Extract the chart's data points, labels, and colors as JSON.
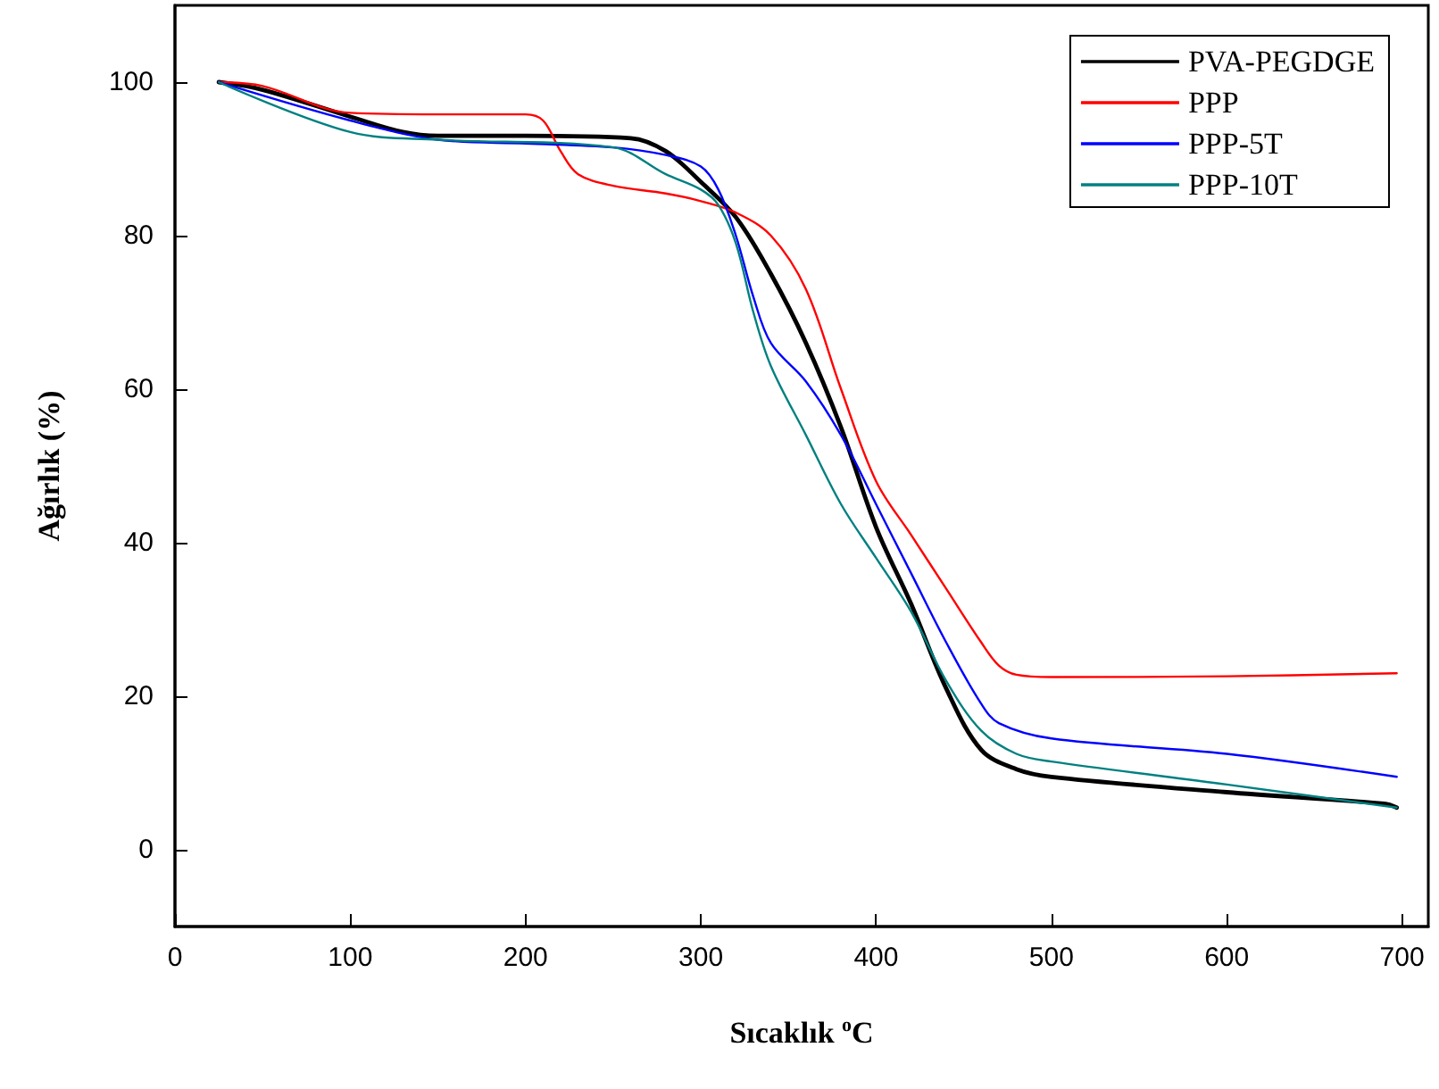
{
  "chart_data": {
    "type": "line",
    "xlabel": "Sıcaklık $^{o}$C",
    "ylabel": "Ağırlık (%)",
    "xlim": [
      0,
      715
    ],
    "ylim": [
      -10,
      110
    ],
    "xticks": [
      0,
      100,
      200,
      300,
      400,
      500,
      600,
      700
    ],
    "yticks": [
      0,
      20,
      40,
      60,
      80,
      100
    ],
    "grid": false,
    "legend": "top right",
    "marker": "none",
    "line_style": "solid",
    "series": [
      {
        "name": "PVA-PEGDGE",
        "color": "#000000",
        "x": [
          25,
          50,
          100,
          130,
          150,
          200,
          260,
          280,
          300,
          320,
          340,
          360,
          380,
          400,
          420,
          440,
          460,
          480,
          500,
          600,
          690,
          697
        ],
        "values": [
          100,
          99,
          95.5,
          93.5,
          93,
          93,
          92.7,
          91,
          87,
          82.4,
          75,
          66,
          55,
          42,
          32,
          21,
          13,
          10.5,
          9.5,
          7.5,
          6,
          5.5
        ]
      },
      {
        "name": "PPP",
        "color": "#ff0000",
        "x": [
          25,
          50,
          100,
          150,
          200,
          210,
          220,
          230,
          250,
          280,
          300,
          320,
          340,
          360,
          380,
          400,
          420,
          440,
          460,
          470,
          480,
          500,
          600,
          697
        ],
        "values": [
          100,
          99.5,
          96,
          95.8,
          95.8,
          95,
          91,
          88,
          86.5,
          85.5,
          84.5,
          83,
          80,
          73,
          60,
          48,
          41,
          34,
          27,
          24,
          22.8,
          22.5,
          22.6,
          23
        ]
      },
      {
        "name": "PPP-5T",
        "color": "#0000ff",
        "x": [
          25,
          100,
          150,
          200,
          250,
          280,
          300,
          310,
          320,
          330,
          340,
          360,
          380,
          400,
          420,
          440,
          460,
          470,
          500,
          600,
          697
        ],
        "values": [
          100,
          95,
          92.5,
          92,
          91.5,
          90.5,
          89,
          86,
          80,
          72,
          66,
          61,
          54,
          45,
          36,
          27,
          19,
          16.5,
          14.5,
          12.5,
          9.5
        ]
      },
      {
        "name": "PPP-10T",
        "color": "#008080",
        "x": [
          25,
          100,
          150,
          250,
          280,
          300,
          310,
          320,
          330,
          340,
          360,
          380,
          400,
          420,
          440,
          460,
          480,
          500,
          600,
          697
        ],
        "values": [
          100,
          93.5,
          92.5,
          91.5,
          88,
          86,
          84,
          79,
          70,
          63,
          54,
          45,
          38,
          31,
          22,
          15.5,
          12.5,
          11.5,
          8.5,
          5.5
        ]
      }
    ]
  }
}
